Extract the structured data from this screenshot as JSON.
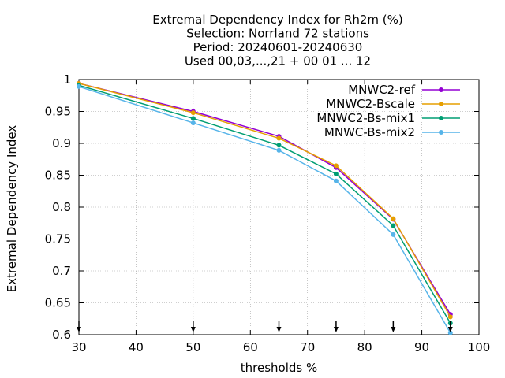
{
  "chart_data": {
    "type": "line",
    "title_lines": [
      "Extremal Dependency Index  for Rh2m (%)",
      "Selection: Norrland     72 stations",
      "Period: 20240601-20240630",
      "Used 00,03,...,21 + 00 01 ... 12"
    ],
    "xlabel": "thresholds %",
    "ylabel": "Extremal Dependency Index",
    "xlim": [
      30,
      100
    ],
    "ylim": [
      0.6,
      1.0
    ],
    "x_ticks": [
      30,
      40,
      50,
      60,
      70,
      80,
      90,
      100
    ],
    "y_ticks": [
      0.6,
      0.65,
      0.7,
      0.75,
      0.8,
      0.85,
      0.9,
      0.95,
      1.0
    ],
    "y_tick_labels": [
      "0.6",
      "0.65",
      "0.7",
      "0.75",
      "0.8",
      "0.85",
      "0.9",
      "0.95",
      "1"
    ],
    "x": [
      30,
      50,
      65,
      75,
      85,
      95
    ],
    "arrow_x": [
      30,
      50,
      65,
      75,
      85,
      95
    ],
    "grid": true,
    "legend_position": "top-right",
    "series": [
      {
        "name": "MNWC2-ref",
        "color": "#9400d3",
        "values": [
          0.994,
          0.95,
          0.911,
          0.862,
          0.781,
          0.632
        ]
      },
      {
        "name": "MNWC2-Bscale",
        "color": "#e69f00",
        "values": [
          0.994,
          0.948,
          0.908,
          0.865,
          0.782,
          0.628
        ]
      },
      {
        "name": "MNWC2-Bs-mix1",
        "color": "#009e73",
        "values": [
          0.991,
          0.939,
          0.897,
          0.852,
          0.771,
          0.618
        ]
      },
      {
        "name": "MNWC-Bs-mix2",
        "color": "#56b4e9",
        "values": [
          0.989,
          0.932,
          0.889,
          0.841,
          0.757,
          0.603
        ]
      }
    ]
  }
}
